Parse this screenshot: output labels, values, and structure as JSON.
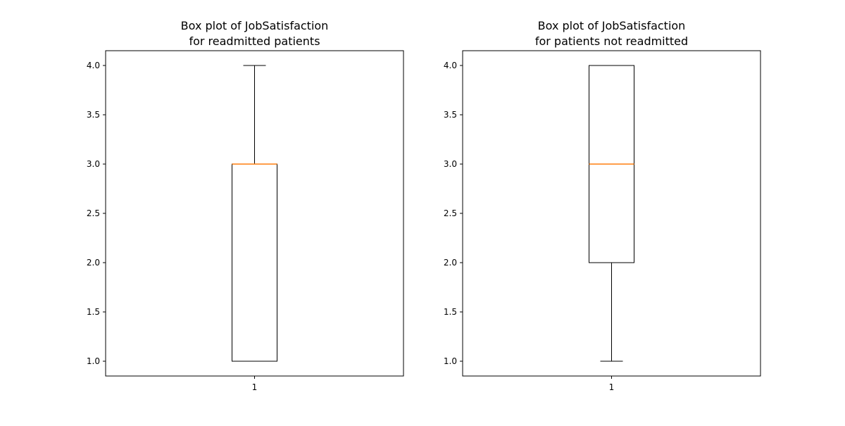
{
  "chart_data": [
    {
      "type": "box",
      "title": [
        "Box plot of JobSatisfaction",
        "for readmitted patients"
      ],
      "xlabel": "",
      "ylabel": "",
      "ylim": [
        0.85,
        4.15
      ],
      "yticks": [
        "1.0",
        "1.5",
        "2.0",
        "2.5",
        "3.0",
        "3.5",
        "4.0"
      ],
      "xticks": [
        "1"
      ],
      "grid": false,
      "boxes": [
        {
          "whisker_low": 1.0,
          "q1": 1.0,
          "median": 3.0,
          "q3": 3.0,
          "whisker_high": 4.0
        }
      ]
    },
    {
      "type": "box",
      "title": [
        "Box plot of JobSatisfaction",
        "for patients not readmitted"
      ],
      "xlabel": "",
      "ylabel": "",
      "ylim": [
        0.85,
        4.15
      ],
      "yticks": [
        "1.0",
        "1.5",
        "2.0",
        "2.5",
        "3.0",
        "3.5",
        "4.0"
      ],
      "xticks": [
        "1"
      ],
      "grid": false,
      "boxes": [
        {
          "whisker_low": 1.0,
          "q1": 2.0,
          "median": 3.0,
          "q3": 4.0,
          "whisker_high": 4.0
        }
      ]
    }
  ],
  "colors": {
    "box": "#000000",
    "median": "#ff7f0e",
    "axes": "#000000",
    "background": "#ffffff"
  }
}
